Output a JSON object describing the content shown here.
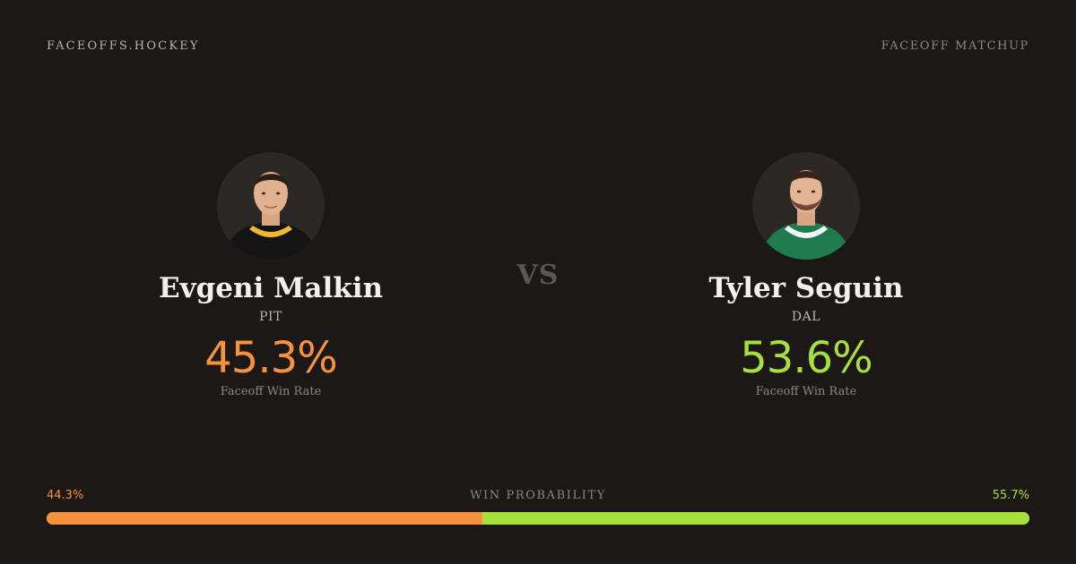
{
  "header": {
    "brand": "FACEOFFS.HOCKEY",
    "matchup_label": "FACEOFF MATCHUP"
  },
  "vs_label": "VS",
  "players": [
    {
      "name": "Evgeni Malkin",
      "team": "PIT",
      "rate": "45.3%",
      "rate_label": "Faceoff Win Rate",
      "color": "#f5923e",
      "jersey_color": "#141414",
      "jersey_trim": "#f2b632"
    },
    {
      "name": "Tyler Seguin",
      "team": "DAL",
      "rate": "53.6%",
      "rate_label": "Faceoff Win Rate",
      "color": "#a7e03a",
      "jersey_color": "#1f7a4d",
      "jersey_trim": "#f4f4f4"
    }
  ],
  "probability": {
    "title": "WIN PROBABILITY",
    "left_label": "44.3%",
    "right_label": "55.7%",
    "left_value": 44.3,
    "right_value": 55.7
  }
}
